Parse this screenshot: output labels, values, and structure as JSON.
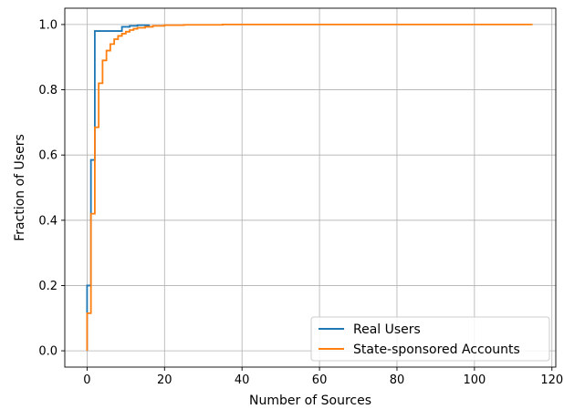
{
  "chart_data": {
    "type": "line",
    "title": "",
    "xlabel": "Number of Sources",
    "ylabel": "Fraction of Users",
    "xlim": [
      -5.75,
      121.0
    ],
    "ylim": [
      -0.05,
      1.05
    ],
    "xticks": [
      0,
      20,
      40,
      60,
      80,
      100,
      120
    ],
    "yticks": [
      0.0,
      0.2,
      0.4,
      0.6,
      0.8,
      1.0
    ],
    "ytick_labels": [
      "0.0",
      "0.2",
      "0.4",
      "0.6",
      "0.8",
      "1.0"
    ],
    "grid": true,
    "legend_position": "lower-right",
    "series": [
      {
        "name": "Real Users",
        "color": "#1f77b4",
        "step": true,
        "points": [
          [
            0,
            0.0
          ],
          [
            0,
            0.2
          ],
          [
            1,
            0.2
          ],
          [
            1,
            0.585
          ],
          [
            2,
            0.585
          ],
          [
            2,
            0.98
          ],
          [
            9,
            0.98
          ],
          [
            9,
            0.993
          ],
          [
            11,
            0.993
          ],
          [
            11,
            0.996
          ],
          [
            13,
            0.996
          ],
          [
            13,
            0.998
          ],
          [
            16,
            0.998
          ],
          [
            16,
            1.0
          ]
        ]
      },
      {
        "name": "State-sponsored Accounts",
        "color": "#ff7f0e",
        "step": true,
        "points": [
          [
            0,
            0.0
          ],
          [
            0,
            0.115
          ],
          [
            1,
            0.115
          ],
          [
            1,
            0.42
          ],
          [
            2,
            0.42
          ],
          [
            2,
            0.685
          ],
          [
            3,
            0.685
          ],
          [
            3,
            0.82
          ],
          [
            4,
            0.82
          ],
          [
            4,
            0.89
          ],
          [
            5,
            0.89
          ],
          [
            5,
            0.92
          ],
          [
            6,
            0.92
          ],
          [
            6,
            0.94
          ],
          [
            7,
            0.94
          ],
          [
            7,
            0.955
          ],
          [
            8,
            0.955
          ],
          [
            8,
            0.965
          ],
          [
            9,
            0.965
          ],
          [
            9,
            0.972
          ],
          [
            10,
            0.972
          ],
          [
            10,
            0.978
          ],
          [
            11,
            0.978
          ],
          [
            11,
            0.983
          ],
          [
            12,
            0.983
          ],
          [
            12,
            0.987
          ],
          [
            13,
            0.987
          ],
          [
            13,
            0.99
          ],
          [
            15,
            0.99
          ],
          [
            15,
            0.993
          ],
          [
            17,
            0.993
          ],
          [
            17,
            0.996
          ],
          [
            20,
            0.996
          ],
          [
            20,
            0.998
          ],
          [
            25,
            0.998
          ],
          [
            25,
            0.999
          ],
          [
            35,
            0.999
          ],
          [
            35,
            1.0
          ],
          [
            115,
            1.0
          ]
        ]
      }
    ]
  }
}
